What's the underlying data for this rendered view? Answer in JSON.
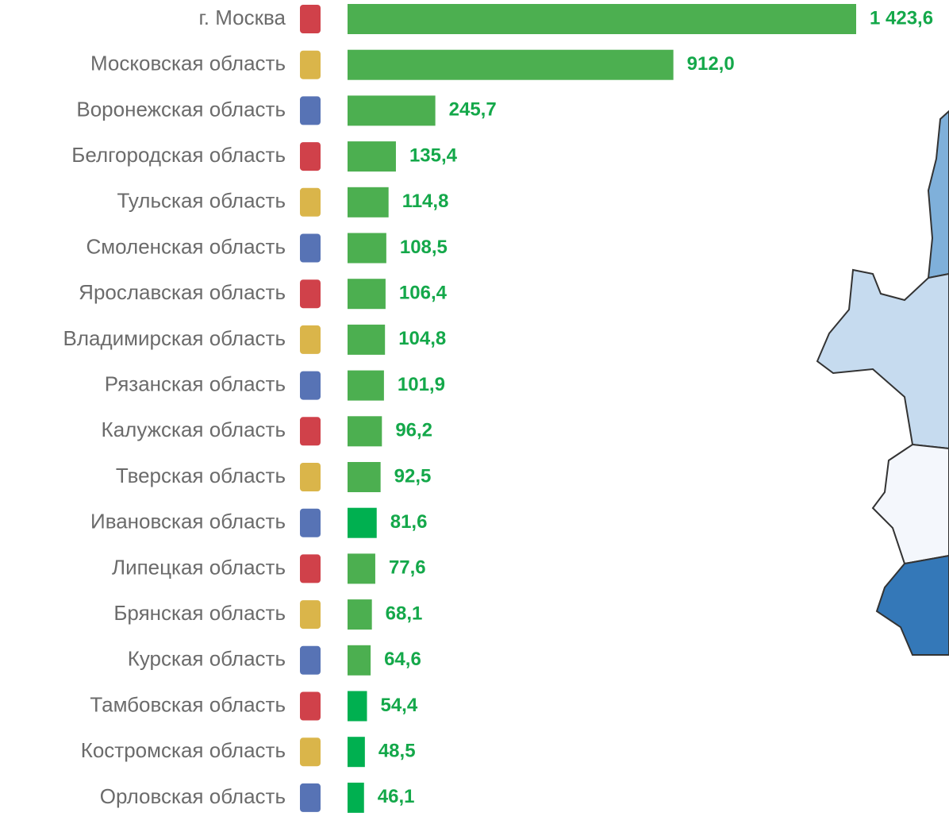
{
  "chart_data": {
    "type": "hbar",
    "categories": [
      "г. Москва",
      "Московская область",
      "Воронежская область",
      "Белгородская область",
      "Тульская область",
      "Смоленская область",
      "Ярославская область",
      "Владимирская область",
      "Рязанская область",
      "Калужская область",
      "Тверская область",
      "Ивановская область",
      "Липецкая область",
      "Брянская область",
      "Курская область",
      "Тамбовская область",
      "Костромская область",
      "Орловская область"
    ],
    "values": [
      1423.6,
      912.0,
      245.7,
      135.4,
      114.8,
      108.5,
      106.4,
      104.8,
      101.9,
      96.2,
      92.5,
      81.6,
      77.6,
      68.1,
      64.6,
      54.4,
      48.5,
      46.1
    ],
    "value_labels": [
      "1 423,6",
      "912,0",
      "245,7",
      "135,4",
      "114,8",
      "108,5",
      "106,4",
      "104,8",
      "101,9",
      "96,2",
      "92,5",
      "81,6",
      "77,6",
      "68,1",
      "64,6",
      "54,4",
      "48,5",
      "46,1"
    ],
    "colors": [
      "#4caf50",
      "#4caf50",
      "#4caf50",
      "#4caf50",
      "#4caf50",
      "#4caf50",
      "#4caf50",
      "#4caf50",
      "#4caf50",
      "#4caf50",
      "#4caf50",
      "#00b050",
      "#4caf50",
      "#4caf50",
      "#4caf50",
      "#00b050",
      "#00b050",
      "#00b050"
    ],
    "label_color": "#14a84a"
  }
}
